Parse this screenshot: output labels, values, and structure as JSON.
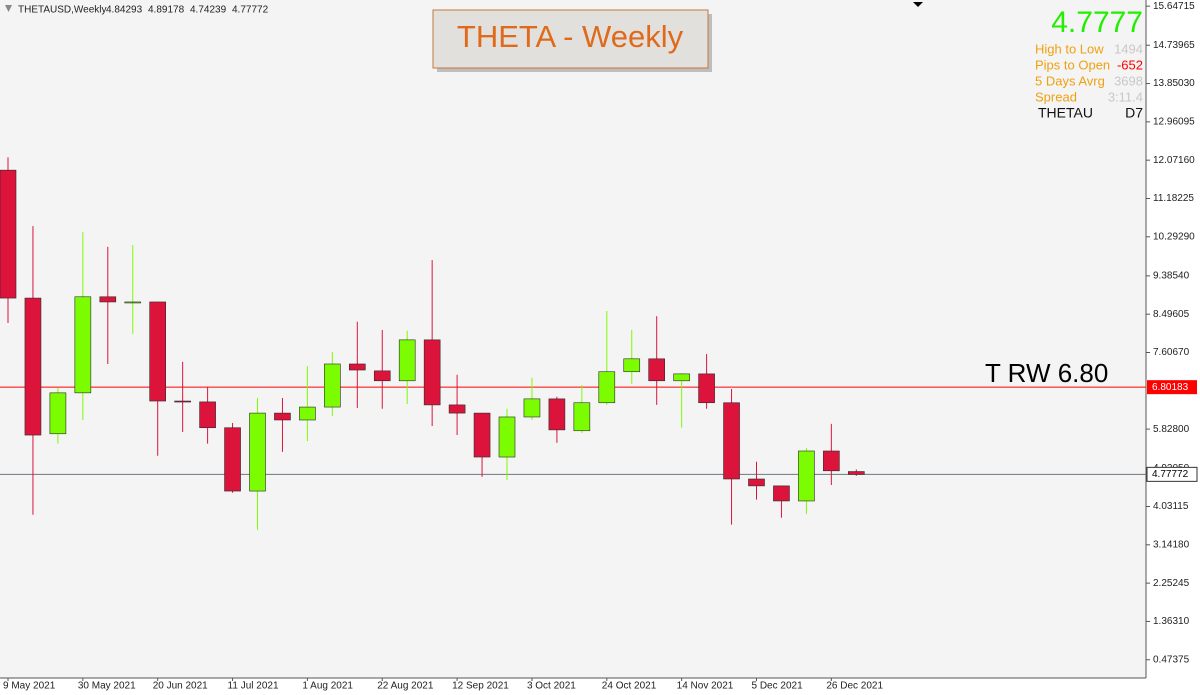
{
  "chart_data": {
    "type": "candlestick",
    "symbol_header": "THETAUSD,Weekly",
    "title": "THETA - Weekly",
    "categories": [
      "9 May 2021",
      null,
      null,
      "30 May 2021",
      null,
      null,
      "20 Jun 2021",
      null,
      null,
      "11 Jul 2021",
      null,
      null,
      "1 Aug 2021",
      null,
      null,
      "22 Aug 2021",
      null,
      null,
      "12 Sep 2021",
      null,
      null,
      "3 Oct 2021",
      null,
      null,
      "24 Oct 2021",
      null,
      null,
      "14 Nov 2021",
      null,
      null,
      "5 Dec 2021",
      null,
      null,
      "26 Dec 2021",
      null
    ],
    "open": [
      11.84,
      8.87,
      5.72,
      6.67,
      8.9,
      8.76,
      8.78,
      6.48,
      6.46,
      5.86,
      4.39,
      6.2,
      6.04,
      6.34,
      7.34,
      7.18,
      6.95,
      7.9,
      6.39,
      6.2,
      5.18,
      6.11,
      6.53,
      5.79,
      6.44,
      7.16,
      7.46,
      6.95,
      7.11,
      6.44,
      4.67,
      4.51,
      4.16,
      5.32,
      4.84293
    ],
    "high": [
      12.14,
      10.54,
      6.78,
      10.4,
      10.06,
      10.1,
      8.78,
      7.39,
      6.81,
      5.97,
      6.55,
      6.55,
      7.29,
      7.62,
      8.32,
      8.13,
      8.11,
      9.75,
      7.09,
      6.2,
      6.3,
      7.02,
      6.58,
      6.85,
      8.57,
      8.13,
      8.45,
      7.13,
      7.57,
      6.76,
      5.07,
      4.51,
      5.39,
      5.95,
      4.89178
    ],
    "low": [
      8.29,
      3.84,
      5.49,
      6.04,
      7.34,
      8.04,
      5.21,
      5.76,
      5.49,
      4.35,
      3.49,
      5.3,
      5.55,
      6.13,
      6.32,
      6.3,
      6.41,
      5.9,
      5.69,
      4.72,
      4.65,
      6.04,
      5.51,
      5.74,
      6.39,
      6.88,
      6.39,
      5.86,
      6.3,
      3.61,
      4.19,
      3.77,
      3.86,
      4.53,
      4.74239
    ],
    "close": [
      8.87,
      5.69,
      6.67,
      8.9,
      8.78,
      8.78,
      6.48,
      6.46,
      5.86,
      4.39,
      6.2,
      6.04,
      6.34,
      7.34,
      7.2,
      6.95,
      7.9,
      6.39,
      6.2,
      5.18,
      6.11,
      6.53,
      5.81,
      6.44,
      7.16,
      7.46,
      6.95,
      7.11,
      6.44,
      4.67,
      4.51,
      4.16,
      5.32,
      4.86,
      4.77772
    ],
    "up_color": "#7cfc00",
    "down_color": "#dc143c",
    "ylim": [
      0.05,
      15.79
    ],
    "yticks": [
      15.64715,
      14.73965,
      {
        "value": 13.8503,
        "label": "13.85030"
      },
      12.96095,
      {
        "value": 12.0716,
        "label": "12.07160"
      },
      11.18225,
      {
        "value": 10.2929,
        "label": "10.29290"
      },
      {
        "value": 9.3854,
        "label": "9.38540"
      },
      8.49605,
      {
        "value": 7.6067,
        "label": "7.60670"
      },
      {
        "value": 5.828,
        "label": "5.82800"
      },
      {
        "value": 4.9205,
        "label": "4.92050"
      },
      4.03115,
      {
        "value": 3.1418,
        "label": "3.14180"
      },
      2.25245,
      {
        "value": 1.3631,
        "label": "1.36310"
      },
      0.47375
    ],
    "resistance": {
      "value": 6.80183,
      "label": "T RW 6.80",
      "color": "#ff0000"
    },
    "grid": false
  },
  "info_panel": {
    "price": 4.7777,
    "rows": [
      {
        "label": "High to Low",
        "value": 1494,
        "color": "#c8c8c8"
      },
      {
        "label": "Pips to Open",
        "value": -652,
        "color": "#ff0000"
      },
      {
        "label": "5 Days Avrg",
        "value": 3698,
        "color": "#c8c8c8"
      },
      {
        "label": "Spread",
        "value": "3:11.4",
        "color": "#c8c8c8"
      }
    ],
    "symbol": "THETAU",
    "timeframe": "D7"
  }
}
